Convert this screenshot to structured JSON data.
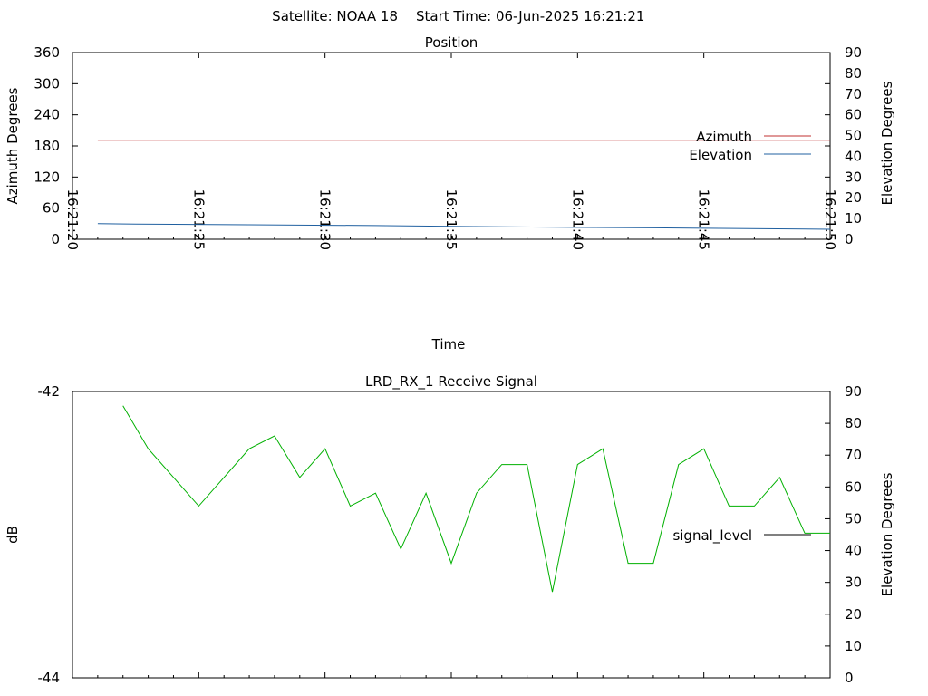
{
  "header": {
    "satellite_label": "Satellite: NOAA 18",
    "start_time_label": "Start Time: 06-Jun-2025 16:21:21"
  },
  "chart_data": [
    {
      "type": "line",
      "title": "Position",
      "xlabel": "Time",
      "ylabel": "Azimuth Degrees",
      "y2label": "Elevation Degrees",
      "x_ticks": [
        "16:21:20",
        "16:21:25",
        "16:21:30",
        "16:21:35",
        "16:21:40",
        "16:21:45",
        "16:21:50"
      ],
      "x_range_seconds": [
        0,
        30
      ],
      "ylim": [
        0,
        360
      ],
      "y_ticks": [
        0,
        60,
        120,
        180,
        240,
        300,
        360
      ],
      "y2lim": [
        0,
        90
      ],
      "y2_ticks": [
        0,
        10,
        20,
        30,
        40,
        50,
        60,
        70,
        80,
        90
      ],
      "legend_position": "right",
      "series": [
        {
          "name": "Azimuth",
          "axis": "y",
          "color": "#c03030",
          "x": [
            "16:21:21",
            "16:21:50"
          ],
          "values": [
            191,
            191
          ]
        },
        {
          "name": "Elevation",
          "axis": "y2",
          "color": "#2060a0",
          "x": [
            "16:21:21",
            "16:21:22.5",
            "16:21:27",
            "16:21:32",
            "16:21:37",
            "16:21:43",
            "16:21:50"
          ],
          "values": [
            7.5,
            7.3,
            7.0,
            6.6,
            6.0,
            5.5,
            4.8
          ]
        }
      ]
    },
    {
      "type": "line",
      "title": "LRD_RX_1 Receive Signal",
      "ylabel": "dB",
      "y2label": "Elevation Degrees",
      "ylim": [
        -44,
        -42
      ],
      "y_ticks": [
        -44,
        -42
      ],
      "y2lim": [
        0,
        90
      ],
      "y2_ticks": [
        0,
        10,
        20,
        30,
        40,
        50,
        60,
        70,
        80,
        90
      ],
      "x_range_seconds": [
        0,
        30
      ],
      "legend_position": "right",
      "series": [
        {
          "name": "signal_level",
          "color": "#00b000",
          "x_seconds": [
            2,
            3,
            4,
            5,
            6,
            7,
            8,
            9,
            10,
            11,
            12,
            13,
            14,
            15,
            16,
            17,
            18,
            19,
            20,
            21,
            22,
            23,
            24,
            25,
            26,
            27,
            28,
            29,
            30
          ],
          "values": [
            -42.1,
            -42.4,
            -42.6,
            -42.8,
            -42.6,
            -42.4,
            -42.31,
            -42.6,
            -42.4,
            -42.8,
            -42.71,
            -43.1,
            -42.71,
            -43.2,
            -42.71,
            -42.51,
            -42.51,
            -43.4,
            -42.51,
            -42.4,
            -43.2,
            -43.2,
            -42.51,
            -42.4,
            -42.8,
            -42.8,
            -42.6,
            -42.99,
            -42.99
          ]
        }
      ]
    }
  ]
}
